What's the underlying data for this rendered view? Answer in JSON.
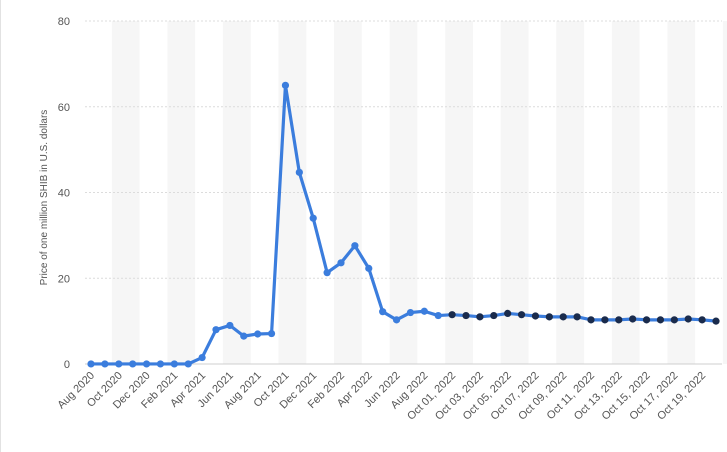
{
  "chart_data": {
    "type": "line",
    "title": "",
    "xlabel": "",
    "ylabel": "Price of one million SHIB in U.S. dollars",
    "ylim": [
      0,
      80
    ],
    "yticks": [
      0,
      20,
      40,
      60,
      80
    ],
    "grid": "horizontal dashed",
    "legend": "none",
    "categories": [
      "Aug 2020",
      "Sep 2020",
      "Oct 2020",
      "Nov 2020",
      "Dec 2020",
      "Jan 2021",
      "Feb 2021",
      "Mar 2021",
      "Apr 2021",
      "May 2021",
      "Jun 2021",
      "Jul 2021",
      "Aug 2021",
      "Sep 2021",
      "Oct 2021",
      "Nov 2021",
      "Dec 2021",
      "Jan 2022",
      "Feb 2022",
      "Mar 2022",
      "Apr 2022",
      "May 2022",
      "Jun 2022",
      "Jul 2022",
      "Aug 2022",
      "Sep 2022",
      "Oct 01, 2022",
      "Oct 02, 2022",
      "Oct 03, 2022",
      "Oct 04, 2022",
      "Oct 05, 2022",
      "Oct 06, 2022",
      "Oct 07, 2022",
      "Oct 08, 2022",
      "Oct 09, 2022",
      "Oct 10, 2022",
      "Oct 11, 2022",
      "Oct 12, 2022",
      "Oct 13, 2022",
      "Oct 14, 2022",
      "Oct 15, 2022",
      "Oct 16, 2022",
      "Oct 17, 2022",
      "Oct 18, 2022",
      "Oct 19, 2022",
      "Oct 20, 2022"
    ],
    "tick_labels": [
      "Aug 2020",
      "Oct 2020",
      "Dec 2020",
      "Feb 2021",
      "Apr 2021",
      "Jun 2021",
      "Aug 2021",
      "Oct 2021",
      "Dec 2021",
      "Feb 2022",
      "Apr 2022",
      "Jun 2022",
      "Aug 2022",
      "Oct 01, 2022",
      "Oct 03, 2022",
      "Oct 05, 2022",
      "Oct 07, 2022",
      "Oct 09, 2022",
      "Oct 11, 2022",
      "Oct 13, 2022",
      "Oct 15, 2022",
      "Oct 17, 2022",
      "Oct 19, 2022"
    ],
    "series": [
      {
        "values": [
          0.01,
          0.01,
          0.01,
          0.01,
          0.01,
          0.01,
          0.01,
          0.01,
          1.5,
          8,
          9,
          6.5,
          7,
          7.1,
          65,
          44.7,
          34,
          21.3,
          23.6,
          27.6,
          22.3,
          12.2,
          10.3,
          12,
          12.3,
          11.3,
          11.5,
          11.3,
          11,
          11.3,
          11.8,
          11.5,
          11.2,
          11,
          11,
          11,
          10.3,
          10.3,
          10.3,
          10.5,
          10.3,
          10.3,
          10.3,
          10.5,
          10.3,
          10
        ],
        "color": "#3b7ddd",
        "marker_color_monthly": "#3b7ddd",
        "marker_color_daily": "#1a2b4c"
      }
    ]
  }
}
